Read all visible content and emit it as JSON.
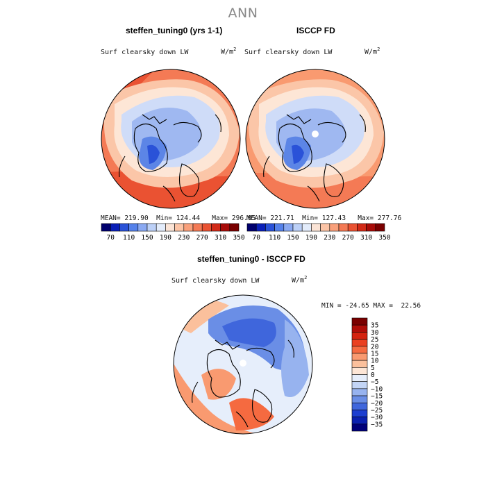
{
  "season": "ANN",
  "variable": "Surf clearsky down LW",
  "units_base": "W/m",
  "units_exp": "2",
  "panels": [
    {
      "id": "model",
      "title": "steffen_tuning0 (yrs 1-1)",
      "mean": "219.90",
      "min": "124.44",
      "max": "296.05"
    },
    {
      "id": "obs",
      "title": "ISCCP FD",
      "mean": "221.71",
      "min": "127.43",
      "max": "277.76"
    },
    {
      "id": "diff",
      "title": "steffen_tuning0 - ISCCP FD",
      "min": "-24.65",
      "max": "22.56"
    }
  ],
  "labels": {
    "mean": "MEAN=",
    "min": "Min=",
    "max": "Max=",
    "diff_min": "MIN =",
    "diff_max": "MAX ="
  },
  "chart_data": [
    {
      "type": "heatmap",
      "name": "steffen_tuning0 (yrs 1-1)",
      "projection": "polar-stereographic-north",
      "colorbar_levels": [
        70,
        110,
        150,
        190,
        230,
        270,
        310,
        350
      ],
      "colorbar_colors": [
        "#00006e",
        "#0a1fb8",
        "#2a52d8",
        "#5581ea",
        "#8aa9f2",
        "#bcd0f7",
        "#e3ecfb",
        "#fbe4d6",
        "#fcc4a6",
        "#f9a07b",
        "#f47a55",
        "#ea5232",
        "#d22a17",
        "#a80b08",
        "#7a0000"
      ],
      "mean": 219.9,
      "min": 124.44,
      "max": 296.05
    },
    {
      "type": "heatmap",
      "name": "ISCCP FD",
      "projection": "polar-stereographic-north",
      "colorbar_levels": [
        70,
        110,
        150,
        190,
        230,
        270,
        310,
        350
      ],
      "mean": 221.71,
      "min": 127.43,
      "max": 277.76
    },
    {
      "type": "heatmap",
      "name": "steffen_tuning0 - ISCCP FD",
      "projection": "polar-stereographic-north",
      "colorbar_levels": [
        35,
        30,
        25,
        20,
        15,
        10,
        5,
        0,
        -5,
        -10,
        -15,
        -20,
        -25,
        -30,
        -35
      ],
      "colorbar_labels": [
        "35",
        "30",
        "25",
        "20",
        "15",
        "10",
        "5",
        "0",
        "−5",
        "−10",
        "−15",
        "−20",
        "−25",
        "−30",
        "−35"
      ],
      "colorbar_colors": [
        "#7a0000",
        "#b00d08",
        "#d4230f",
        "#ea4020",
        "#f56a40",
        "#f99a70",
        "#fbc09c",
        "#fde6d6",
        "#e6eefb",
        "#c3d5f6",
        "#97b3ef",
        "#6a8ee6",
        "#3f66dc",
        "#1c3ed0",
        "#0a20b0",
        "#00007a"
      ],
      "min": -24.65,
      "max": 22.56
    }
  ]
}
